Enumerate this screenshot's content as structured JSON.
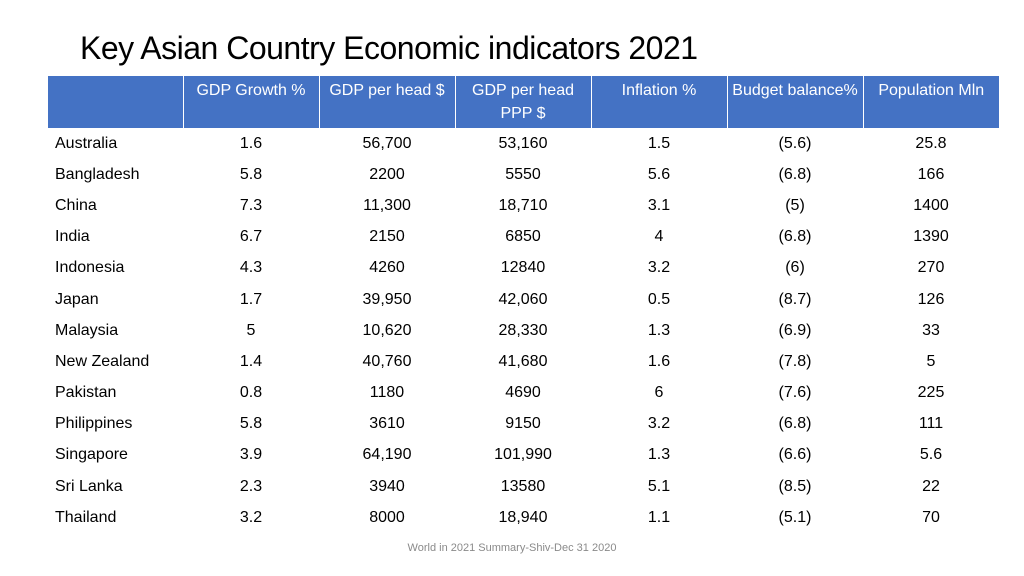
{
  "slide": {
    "title": "Key Asian Country Economic indicators 2021",
    "footer": "World in 2021 Summary-Shiv-Dec 31 2020"
  },
  "table": {
    "headers": [
      "",
      "GDP Growth %",
      "GDP per head $",
      "GDP per head PPP $",
      "Inflation %",
      "Budget balance%",
      "Population Mln"
    ],
    "rows": [
      [
        "Australia",
        "1.6",
        "56,700",
        "53,160",
        "1.5",
        "(5.6)",
        "25.8"
      ],
      [
        "Bangladesh",
        "5.8",
        "2200",
        "5550",
        "5.6",
        "(6.8)",
        "166"
      ],
      [
        "China",
        "7.3",
        "11,300",
        "18,710",
        "3.1",
        "(5)",
        "1400"
      ],
      [
        "India",
        "6.7",
        "2150",
        "6850",
        "4",
        "(6.8)",
        "1390"
      ],
      [
        "Indonesia",
        "4.3",
        "4260",
        "12840",
        "3.2",
        "(6)",
        "270"
      ],
      [
        "Japan",
        "1.7",
        "39,950",
        "42,060",
        "0.5",
        "(8.7)",
        "126"
      ],
      [
        "Malaysia",
        "5",
        "10,620",
        "28,330",
        "1.3",
        "(6.9)",
        "33"
      ],
      [
        "New Zealand",
        "1.4",
        "40,760",
        "41,680",
        "1.6",
        "(7.8)",
        "5"
      ],
      [
        "Pakistan",
        "0.8",
        "1180",
        "4690",
        "6",
        "(7.6)",
        "225"
      ],
      [
        "Philippines",
        "5.8",
        "3610",
        "9150",
        "3.2",
        "(6.8)",
        "111"
      ],
      [
        "Singapore",
        "3.9",
        "64,190",
        "101,990",
        "1.3",
        "(6.6)",
        "5.6"
      ],
      [
        "Sri Lanka",
        "2.3",
        "3940",
        "13580",
        "5.1",
        "(8.5)",
        "22"
      ],
      [
        "Thailand",
        "3.2",
        "8000",
        "18,940",
        "1.1",
        "(5.1)",
        "70"
      ]
    ]
  },
  "colors": {
    "header_bg": "#4472c4",
    "header_text": "#ffffff",
    "body_text": "#000000",
    "footer_text": "#8a8a8a"
  }
}
